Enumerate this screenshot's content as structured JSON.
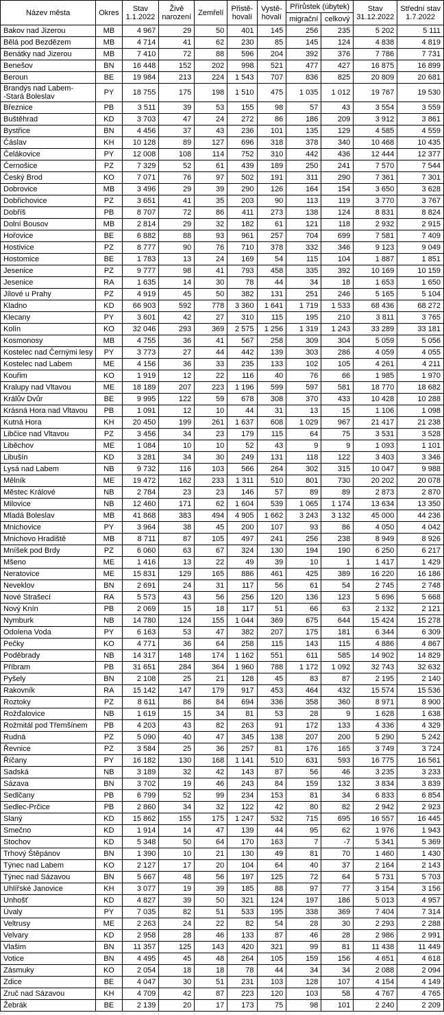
{
  "headers": {
    "name": "Název města",
    "okres": "Okres",
    "pop_start": "Stav\n1.1.2022",
    "births": "Živě\nnarození",
    "deaths": "Zemřelí",
    "immig": "Přistě-\nhovalí",
    "emig": "Vystě-\nhovalí",
    "increase_group": "Přírůstek (úbytek)",
    "migr": "migrační",
    "total": "celkový",
    "pop_end": "Stav\n31.12.2022",
    "pop_mid": "Střední stav\n1.7.2022"
  },
  "col_widths": [
    "130",
    "36",
    "56",
    "52",
    "50",
    "46",
    "46",
    "48",
    "48",
    "62",
    "62"
  ],
  "rows": [
    [
      "Bakov nad Jizerou",
      "MB",
      "4 967",
      "29",
      "50",
      "401",
      "145",
      "256",
      "235",
      "5 202",
      "5 111"
    ],
    [
      "Bělá pod Bezdězem",
      "MB",
      "4 714",
      "41",
      "62",
      "230",
      "85",
      "145",
      "124",
      "4 838",
      "4 819"
    ],
    [
      "Benátky nad Jizerou",
      "MB",
      "7 410",
      "72",
      "88",
      "596",
      "204",
      "392",
      "376",
      "7 786",
      "7 731"
    ],
    [
      "Benešov",
      "BN",
      "16 448",
      "152",
      "202",
      "998",
      "521",
      "477",
      "427",
      "16 875",
      "16 899"
    ],
    [
      "Beroun",
      "BE",
      "19 984",
      "213",
      "224",
      "1 543",
      "707",
      "836",
      "825",
      "20 809",
      "20 681"
    ],
    [
      "Brandýs nad Labem-\n-Stará Boleslav",
      "PY",
      "18 755",
      "175",
      "198",
      "1 510",
      "475",
      "1 035",
      "1 012",
      "19 767",
      "19 530"
    ],
    [
      "Březnice",
      "PB",
      "3 511",
      "39",
      "53",
      "155",
      "98",
      "57",
      "43",
      "3 554",
      "3 559"
    ],
    [
      "Buštěhrad",
      "KD",
      "3 703",
      "47",
      "24",
      "272",
      "86",
      "186",
      "209",
      "3 912",
      "3 861"
    ],
    [
      "Bystřice",
      "BN",
      "4 456",
      "37",
      "43",
      "236",
      "101",
      "135",
      "129",
      "4 585",
      "4 559"
    ],
    [
      "Čáslav",
      "KH",
      "10 128",
      "89",
      "127",
      "696",
      "318",
      "378",
      "340",
      "10 468",
      "10 435"
    ],
    [
      "Čelákovice",
      "PY",
      "12 008",
      "108",
      "114",
      "752",
      "310",
      "442",
      "436",
      "12 444",
      "12 377"
    ],
    [
      "Černošice",
      "PZ",
      "7 329",
      "52",
      "61",
      "439",
      "189",
      "250",
      "241",
      "7 570",
      "7 544"
    ],
    [
      "Český Brod",
      "KO",
      "7 071",
      "76",
      "97",
      "502",
      "191",
      "311",
      "290",
      "7 361",
      "7 301"
    ],
    [
      "Dobrovice",
      "MB",
      "3 496",
      "29",
      "39",
      "290",
      "126",
      "164",
      "154",
      "3 650",
      "3 628"
    ],
    [
      "Dobřichovice",
      "PZ",
      "3 651",
      "41",
      "35",
      "203",
      "90",
      "113",
      "119",
      "3 770",
      "3 767"
    ],
    [
      "Dobříš",
      "PB",
      "8 707",
      "72",
      "86",
      "411",
      "273",
      "138",
      "124",
      "8 831",
      "8 824"
    ],
    [
      "Dolní Bousov",
      "MB",
      "2 814",
      "29",
      "32",
      "182",
      "61",
      "121",
      "118",
      "2 932",
      "2 915"
    ],
    [
      "Hořovice",
      "BE",
      "6 882",
      "88",
      "93",
      "961",
      "257",
      "704",
      "699",
      "7 581",
      "7 409"
    ],
    [
      "Hostivice",
      "PZ",
      "8 777",
      "90",
      "76",
      "710",
      "378",
      "332",
      "346",
      "9 123",
      "9 049"
    ],
    [
      "Hostomice",
      "BE",
      "1 783",
      "13",
      "24",
      "169",
      "54",
      "115",
      "104",
      "1 887",
      "1 851"
    ],
    [
      "Jesenice",
      "PZ",
      "9 777",
      "98",
      "41",
      "793",
      "458",
      "335",
      "392",
      "10 169",
      "10 159"
    ],
    [
      "Jesenice",
      "RA",
      "1 635",
      "14",
      "30",
      "78",
      "44",
      "34",
      "18",
      "1 653",
      "1 650"
    ],
    [
      "Jílové u Prahy",
      "PZ",
      "4 919",
      "45",
      "50",
      "382",
      "131",
      "251",
      "246",
      "5 165",
      "5 104"
    ],
    [
      "Kladno",
      "KD",
      "66 903",
      "592",
      "778",
      "3 360",
      "1 641",
      "1 719",
      "1 533",
      "68 436",
      "68 272"
    ],
    [
      "Klecany",
      "PY",
      "3 601",
      "42",
      "27",
      "310",
      "115",
      "195",
      "210",
      "3 811",
      "3 765"
    ],
    [
      "Kolín",
      "KO",
      "32 046",
      "293",
      "369",
      "2 575",
      "1 256",
      "1 319",
      "1 243",
      "33 289",
      "33 181"
    ],
    [
      "Kosmonosy",
      "MB",
      "4 755",
      "36",
      "41",
      "567",
      "258",
      "309",
      "304",
      "5 059",
      "5 056"
    ],
    [
      "Kostelec nad Černými lesy",
      "PY",
      "3 773",
      "27",
      "44",
      "442",
      "139",
      "303",
      "286",
      "4 059",
      "4 055"
    ],
    [
      "Kostelec nad Labem",
      "ME",
      "4 156",
      "36",
      "33",
      "235",
      "133",
      "102",
      "105",
      "4 261",
      "4 211"
    ],
    [
      "Kouřim",
      "KO",
      "1 919",
      "12",
      "22",
      "116",
      "40",
      "76",
      "66",
      "1 985",
      "1 970"
    ],
    [
      "Kralupy nad Vltavou",
      "ME",
      "18 189",
      "207",
      "223",
      "1 196",
      "599",
      "597",
      "581",
      "18 770",
      "18 682"
    ],
    [
      "Králův Dvůr",
      "BE",
      "9 995",
      "122",
      "59",
      "678",
      "308",
      "370",
      "433",
      "10 428",
      "10 288"
    ],
    [
      "Krásná Hora nad Vltavou",
      "PB",
      "1 091",
      "12",
      "10",
      "44",
      "31",
      "13",
      "15",
      "1 106",
      "1 098"
    ],
    [
      "Kutná Hora",
      "KH",
      "20 450",
      "199",
      "261",
      "1 637",
      "608",
      "1 029",
      "967",
      "21 417",
      "21 238"
    ],
    [
      "Libčice nad Vltavou",
      "PZ",
      "3 456",
      "34",
      "23",
      "179",
      "115",
      "64",
      "75",
      "3 531",
      "3 528"
    ],
    [
      "Liběchov",
      "ME",
      "1 084",
      "10",
      "10",
      "52",
      "43",
      "9",
      "9",
      "1 093",
      "1 101"
    ],
    [
      "Libušín",
      "KD",
      "3 281",
      "34",
      "30",
      "249",
      "131",
      "118",
      "122",
      "3 403",
      "3 346"
    ],
    [
      "Lysá nad Labem",
      "NB",
      "9 732",
      "116",
      "103",
      "566",
      "264",
      "302",
      "315",
      "10 047",
      "9 988"
    ],
    [
      "Mělník",
      "ME",
      "19 472",
      "162",
      "233",
      "1 311",
      "510",
      "801",
      "730",
      "20 202",
      "20 078"
    ],
    [
      "Městec Králové",
      "NB",
      "2 784",
      "23",
      "23",
      "146",
      "57",
      "89",
      "89",
      "2 873",
      "2 870"
    ],
    [
      "Milovice",
      "NB",
      "12 460",
      "171",
      "62",
      "1 604",
      "539",
      "1 065",
      "1 174",
      "13 634",
      "13 350"
    ],
    [
      "Mladá Boleslav",
      "MB",
      "41 868",
      "383",
      "494",
      "4 905",
      "1 662",
      "3 243",
      "3 132",
      "45 000",
      "44 236"
    ],
    [
      "Mnichovice",
      "PY",
      "3 964",
      "38",
      "45",
      "200",
      "107",
      "93",
      "86",
      "4 050",
      "4 042"
    ],
    [
      "Mnichovo Hradiště",
      "MB",
      "8 711",
      "87",
      "105",
      "497",
      "241",
      "256",
      "238",
      "8 949",
      "8 926"
    ],
    [
      "Mníšek pod Brdy",
      "PZ",
      "6 060",
      "63",
      "67",
      "324",
      "130",
      "194",
      "190",
      "6 250",
      "6 217"
    ],
    [
      "Mšeno",
      "ME",
      "1 416",
      "13",
      "22",
      "49",
      "39",
      "10",
      "1",
      "1 417",
      "1 429"
    ],
    [
      "Neratovice",
      "ME",
      "15 831",
      "129",
      "165",
      "886",
      "461",
      "425",
      "389",
      "16 220",
      "16 186"
    ],
    [
      "Neveklov",
      "BN",
      "2 691",
      "24",
      "31",
      "117",
      "56",
      "61",
      "54",
      "2 745",
      "2 748"
    ],
    [
      "Nové Strašecí",
      "RA",
      "5 573",
      "43",
      "56",
      "256",
      "120",
      "136",
      "123",
      "5 696",
      "5 668"
    ],
    [
      "Nový Knín",
      "PB",
      "2 069",
      "15",
      "18",
      "117",
      "51",
      "66",
      "63",
      "2 132",
      "2 121"
    ],
    [
      "Nymburk",
      "NB",
      "14 780",
      "124",
      "155",
      "1 044",
      "369",
      "675",
      "644",
      "15 424",
      "15 278"
    ],
    [
      "Odolena Voda",
      "PY",
      "6 163",
      "53",
      "47",
      "382",
      "207",
      "175",
      "181",
      "6 344",
      "6 309"
    ],
    [
      "Pečky",
      "KO",
      "4 771",
      "36",
      "64",
      "258",
      "115",
      "143",
      "115",
      "4 886",
      "4 867"
    ],
    [
      "Poděbrady",
      "NB",
      "14 317",
      "148",
      "174",
      "1 162",
      "551",
      "611",
      "585",
      "14 902",
      "14 829"
    ],
    [
      "Příbram",
      "PB",
      "31 651",
      "284",
      "364",
      "1 960",
      "788",
      "1 172",
      "1 092",
      "32 743",
      "32 632"
    ],
    [
      "Pyšely",
      "BN",
      "2 108",
      "25",
      "21",
      "128",
      "45",
      "83",
      "87",
      "2 195",
      "2 140"
    ],
    [
      "Rakovník",
      "RA",
      "15 142",
      "147",
      "179",
      "917",
      "453",
      "464",
      "432",
      "15 574",
      "15 536"
    ],
    [
      "Roztoky",
      "PZ",
      "8 611",
      "86",
      "84",
      "694",
      "336",
      "358",
      "360",
      "8 971",
      "8 900"
    ],
    [
      "Rožďalovice",
      "NB",
      "1 619",
      "15",
      "34",
      "81",
      "53",
      "28",
      "9",
      "1 628",
      "1 638"
    ],
    [
      "Rožmitál pod Třemšínem",
      "PB",
      "4 203",
      "43",
      "82",
      "263",
      "91",
      "172",
      "133",
      "4 336",
      "4 329"
    ],
    [
      "Rudná",
      "PZ",
      "5 090",
      "40",
      "47",
      "345",
      "138",
      "207",
      "200",
      "5 290",
      "5 242"
    ],
    [
      "Řevnice",
      "PZ",
      "3 584",
      "25",
      "36",
      "257",
      "81",
      "176",
      "165",
      "3 749",
      "3 724"
    ],
    [
      "Říčany",
      "PY",
      "16 182",
      "130",
      "168",
      "1 141",
      "510",
      "631",
      "593",
      "16 775",
      "16 561"
    ],
    [
      "Sadská",
      "NB",
      "3 189",
      "32",
      "42",
      "143",
      "87",
      "56",
      "46",
      "3 235",
      "3 233"
    ],
    [
      "Sázava",
      "BN",
      "3 702",
      "19",
      "46",
      "243",
      "84",
      "159",
      "132",
      "3 834",
      "3 839"
    ],
    [
      "Sedlčany",
      "PB",
      "6 799",
      "52",
      "99",
      "234",
      "153",
      "81",
      "34",
      "6 833",
      "6 854"
    ],
    [
      "Sedlec-Prčice",
      "PB",
      "2 860",
      "34",
      "32",
      "122",
      "42",
      "80",
      "82",
      "2 942",
      "2 923"
    ],
    [
      "Slaný",
      "KD",
      "15 862",
      "155",
      "175",
      "1 247",
      "532",
      "715",
      "695",
      "16 557",
      "16 445"
    ],
    [
      "Smečno",
      "KD",
      "1 914",
      "14",
      "47",
      "139",
      "44",
      "95",
      "62",
      "1 976",
      "1 943"
    ],
    [
      "Stochov",
      "KD",
      "5 348",
      "50",
      "64",
      "170",
      "163",
      "7",
      "-7",
      "5 341",
      "5 369"
    ],
    [
      "Trhový Štěpánov",
      "BN",
      "1 390",
      "10",
      "21",
      "130",
      "49",
      "81",
      "70",
      "1 460",
      "1 430"
    ],
    [
      "Týnec nad Labem",
      "KO",
      "2 127",
      "17",
      "20",
      "104",
      "64",
      "40",
      "37",
      "2 164",
      "2 143"
    ],
    [
      "Týnec nad Sázavou",
      "BN",
      "5 667",
      "48",
      "56",
      "197",
      "125",
      "72",
      "64",
      "5 731",
      "5 703"
    ],
    [
      "Uhlířské Janovice",
      "KH",
      "3 077",
      "19",
      "39",
      "185",
      "88",
      "97",
      "77",
      "3 154",
      "3 156"
    ],
    [
      "Unhošť",
      "KD",
      "4 827",
      "39",
      "50",
      "321",
      "124",
      "197",
      "186",
      "5 013",
      "4 957"
    ],
    [
      "Úvaly",
      "PY",
      "7 035",
      "82",
      "51",
      "533",
      "195",
      "338",
      "369",
      "7 404",
      "7 314"
    ],
    [
      "Veltrusy",
      "ME",
      "2 263",
      "24",
      "22",
      "82",
      "54",
      "28",
      "30",
      "2 293",
      "2 288"
    ],
    [
      "Velvary",
      "KD",
      "2 958",
      "28",
      "46",
      "133",
      "87",
      "46",
      "28",
      "2 986",
      "2 991"
    ],
    [
      "Vlašim",
      "BN",
      "11 357",
      "125",
      "143",
      "420",
      "321",
      "99",
      "81",
      "11 438",
      "11 449"
    ],
    [
      "Votice",
      "BN",
      "4 495",
      "45",
      "48",
      "264",
      "105",
      "159",
      "156",
      "4 651",
      "4 618"
    ],
    [
      "Zásmuky",
      "KO",
      "2 054",
      "18",
      "18",
      "78",
      "44",
      "34",
      "34",
      "2 088",
      "2 094"
    ],
    [
      "Zdice",
      "BE",
      "4 047",
      "30",
      "51",
      "231",
      "103",
      "128",
      "107",
      "4 154",
      "4 149"
    ],
    [
      "Zruč nad Sázavou",
      "KH",
      "4 709",
      "42",
      "87",
      "223",
      "120",
      "103",
      "58",
      "4 767",
      "4 765"
    ],
    [
      "Žebrák",
      "BE",
      "2 139",
      "20",
      "17",
      "173",
      "75",
      "98",
      "101",
      "2 240",
      "2 209"
    ]
  ]
}
